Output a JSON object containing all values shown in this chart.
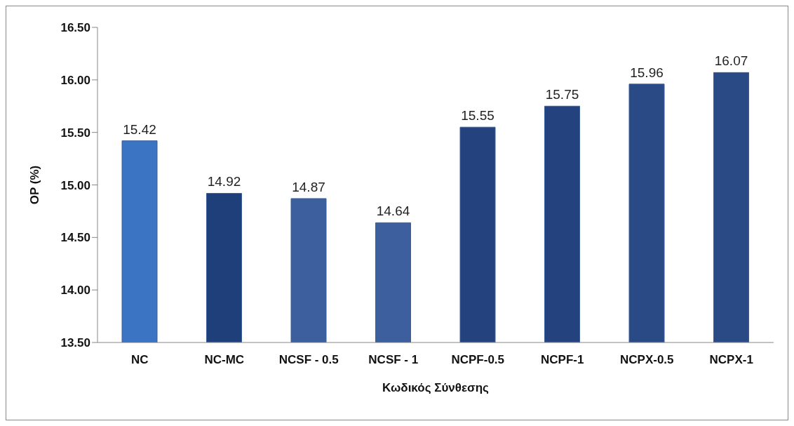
{
  "chart_data": {
    "type": "bar",
    "xlabel": "Κωδικός Σύνθεσης",
    "ylabel": "OP (%)",
    "categories": [
      "NC",
      "NC-MC",
      "NCSF - 0.5",
      "NCSF - 1",
      "NCPF-0.5",
      "NCPF-1",
      "NCPX-0.5",
      "NCPX-1"
    ],
    "values": [
      15.42,
      14.92,
      14.87,
      14.64,
      15.55,
      15.75,
      15.96,
      16.07
    ],
    "colors": [
      "#3b74c2",
      "#1f3f7a",
      "#3d5f9e",
      "#3d5f9e",
      "#23427e",
      "#23427e",
      "#2a4a86",
      "#2a4a86"
    ],
    "ylim": [
      13.5,
      16.5
    ],
    "yticks": [
      {
        "value": 13.5,
        "label": "13.50"
      },
      {
        "value": 14,
        "label": "14.00"
      },
      {
        "value": 14.5,
        "label": "14.50"
      },
      {
        "value": 15,
        "label": "15.00"
      },
      {
        "value": 15.5,
        "label": "15.50"
      },
      {
        "value": 16,
        "label": "16.00"
      },
      {
        "value": 16.5,
        "label": "16.50"
      }
    ],
    "grid": false,
    "data_labels": true
  }
}
